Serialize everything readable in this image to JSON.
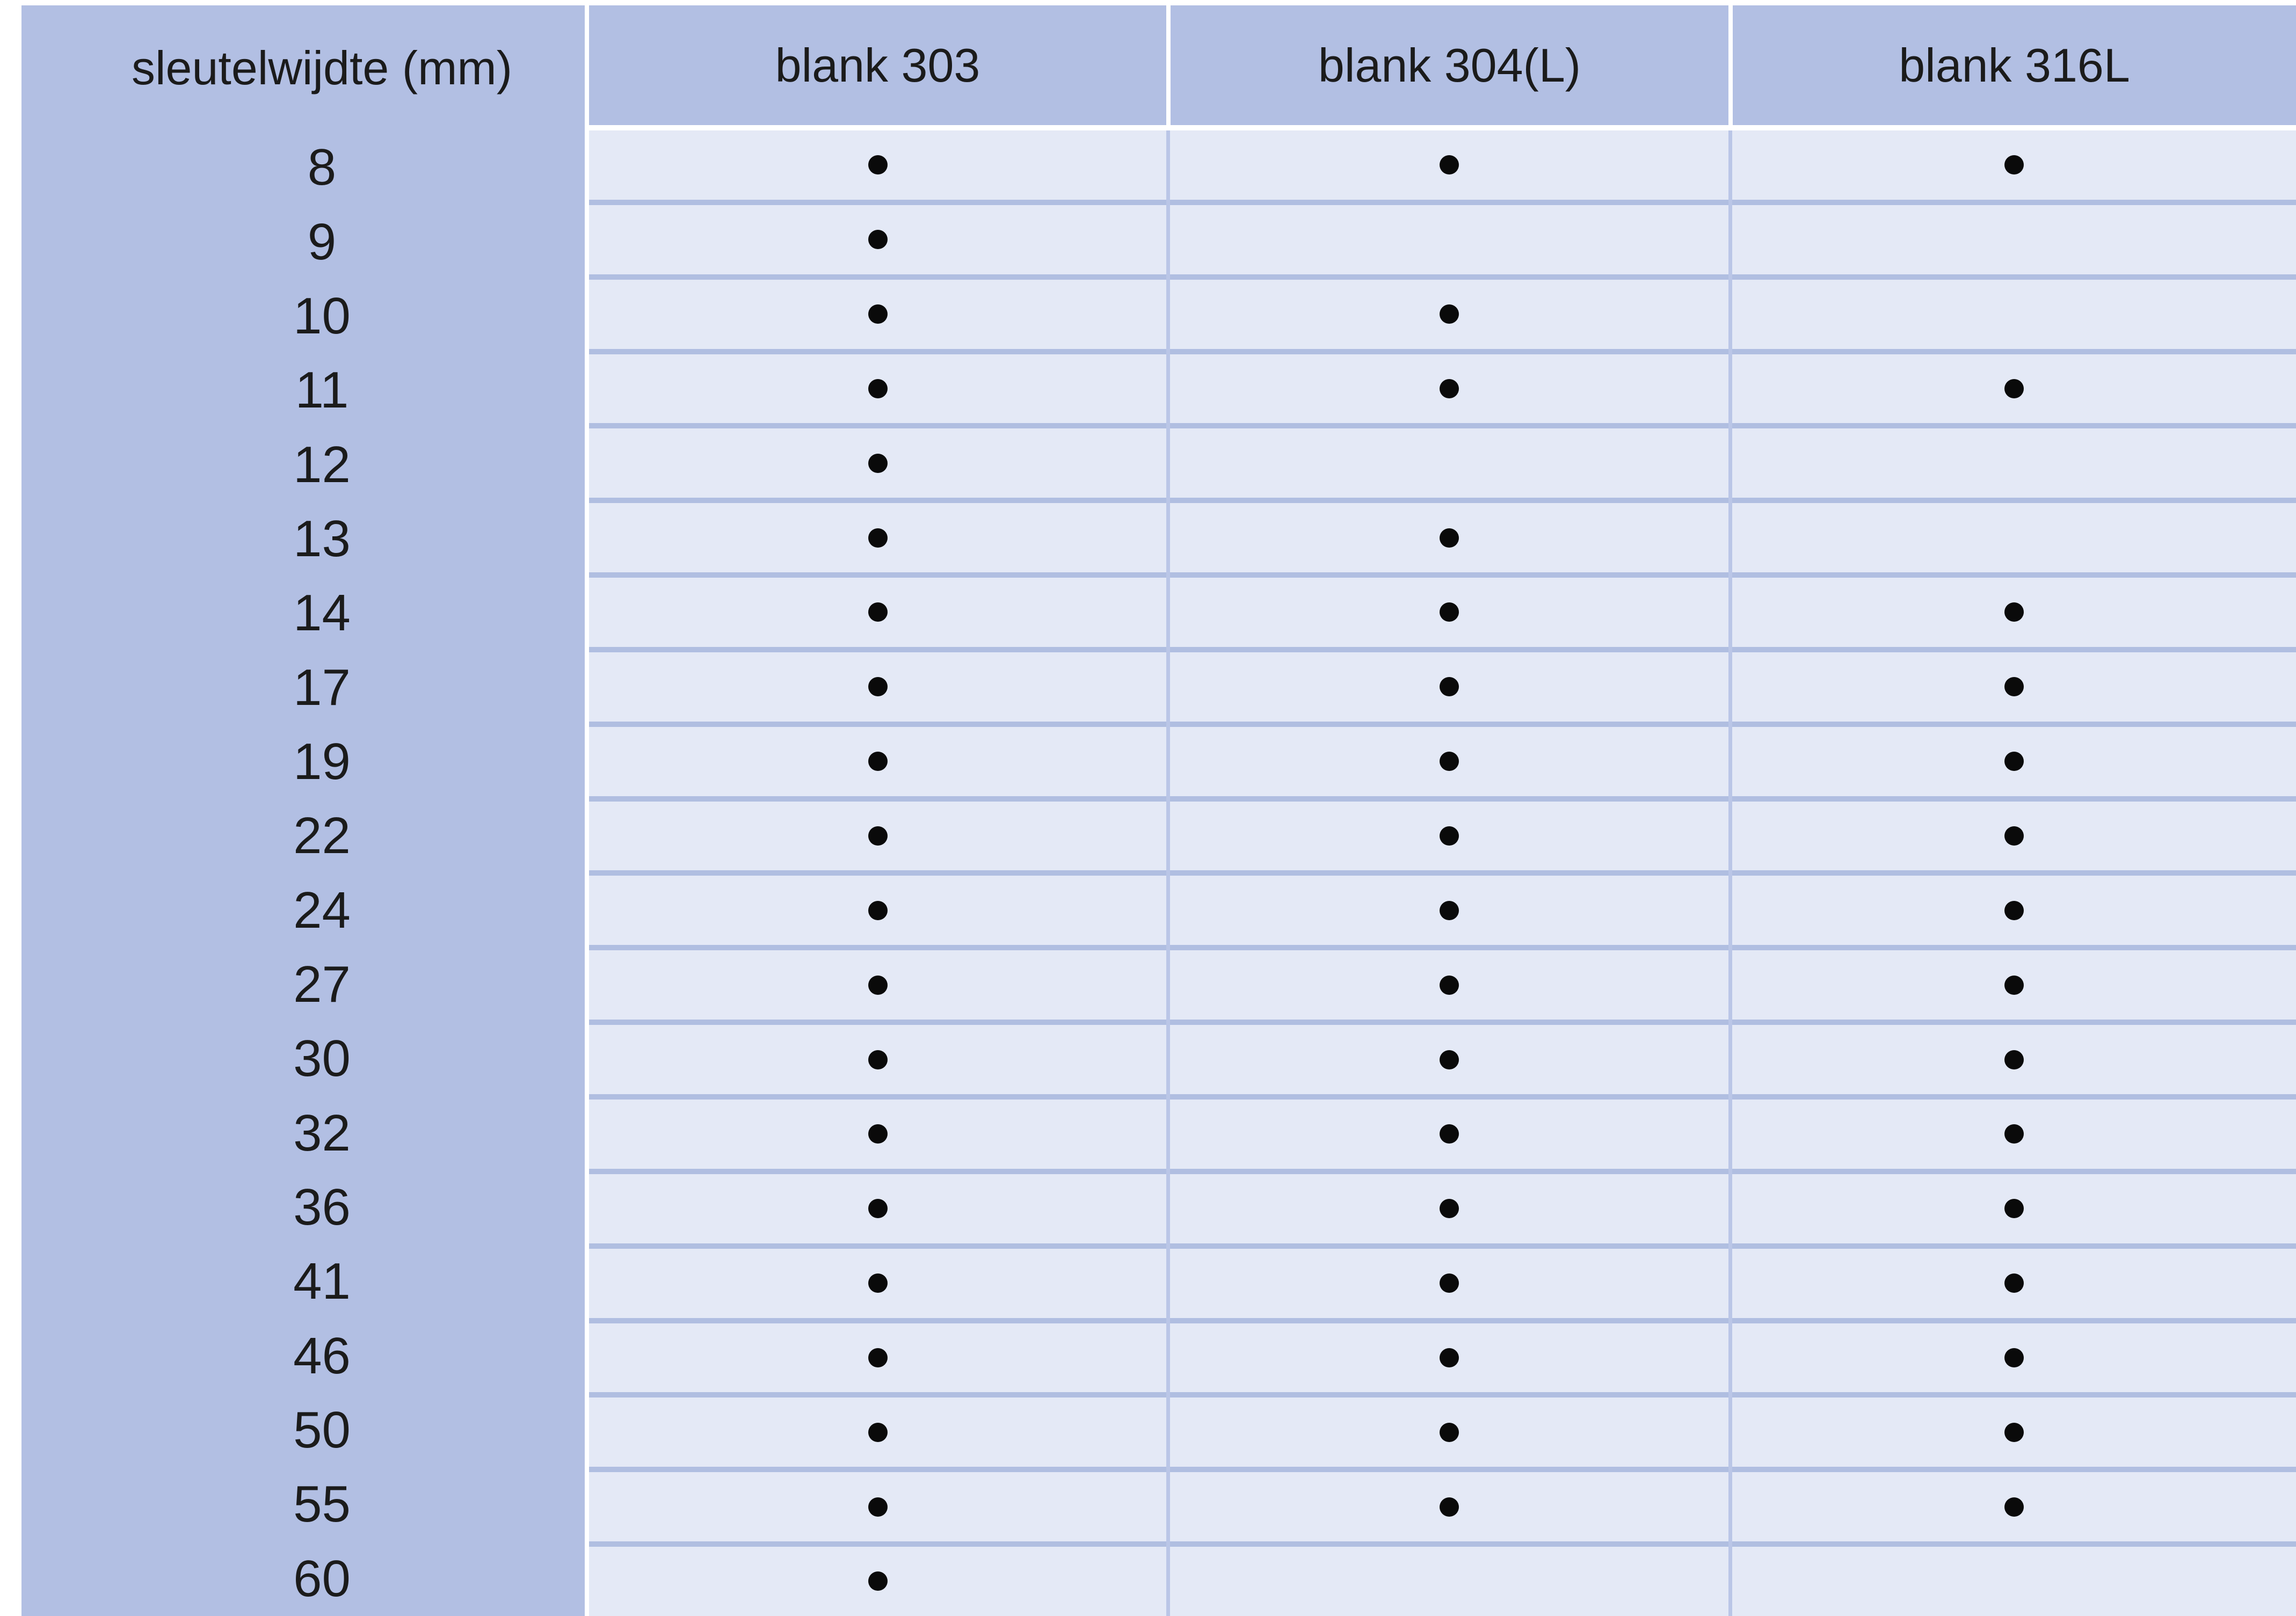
{
  "table": {
    "title": "availability-matrix",
    "columns": {
      "size_header": "sleutelwijdte (mm)",
      "material_headers": [
        "blank 303",
        "blank 304(L)",
        "blank 316L"
      ]
    },
    "dot_symbol": "●",
    "rows": [
      {
        "size": "8",
        "dots": [
          true,
          true,
          true
        ]
      },
      {
        "size": "9",
        "dots": [
          true,
          false,
          false
        ]
      },
      {
        "size": "10",
        "dots": [
          true,
          true,
          false
        ]
      },
      {
        "size": "11",
        "dots": [
          true,
          true,
          true
        ]
      },
      {
        "size": "12",
        "dots": [
          true,
          false,
          false
        ]
      },
      {
        "size": "13",
        "dots": [
          true,
          true,
          false
        ]
      },
      {
        "size": "14",
        "dots": [
          true,
          true,
          true
        ]
      },
      {
        "size": "17",
        "dots": [
          true,
          true,
          true
        ]
      },
      {
        "size": "19",
        "dots": [
          true,
          true,
          true
        ]
      },
      {
        "size": "22",
        "dots": [
          true,
          true,
          true
        ]
      },
      {
        "size": "24",
        "dots": [
          true,
          true,
          true
        ]
      },
      {
        "size": "27",
        "dots": [
          true,
          true,
          true
        ]
      },
      {
        "size": "30",
        "dots": [
          true,
          true,
          true
        ]
      },
      {
        "size": "32",
        "dots": [
          true,
          true,
          true
        ]
      },
      {
        "size": "36",
        "dots": [
          true,
          true,
          true
        ]
      },
      {
        "size": "41",
        "dots": [
          true,
          true,
          true
        ]
      },
      {
        "size": "46",
        "dots": [
          true,
          true,
          true
        ]
      },
      {
        "size": "50",
        "dots": [
          true,
          true,
          true
        ]
      },
      {
        "size": "55",
        "dots": [
          true,
          true,
          true
        ]
      },
      {
        "size": "60",
        "dots": [
          true,
          false,
          false
        ]
      }
    ],
    "colors": {
      "header_and_label_blue": "#b2bfe3",
      "cell_background": "#e4e9f6",
      "row_separator": "#b0bee1",
      "column_separator": "#bac6e7",
      "header_separator": "#ffffff",
      "dot": "#0a0a0a",
      "text": "#1b1b1b",
      "page_background": "#ffffff"
    }
  }
}
